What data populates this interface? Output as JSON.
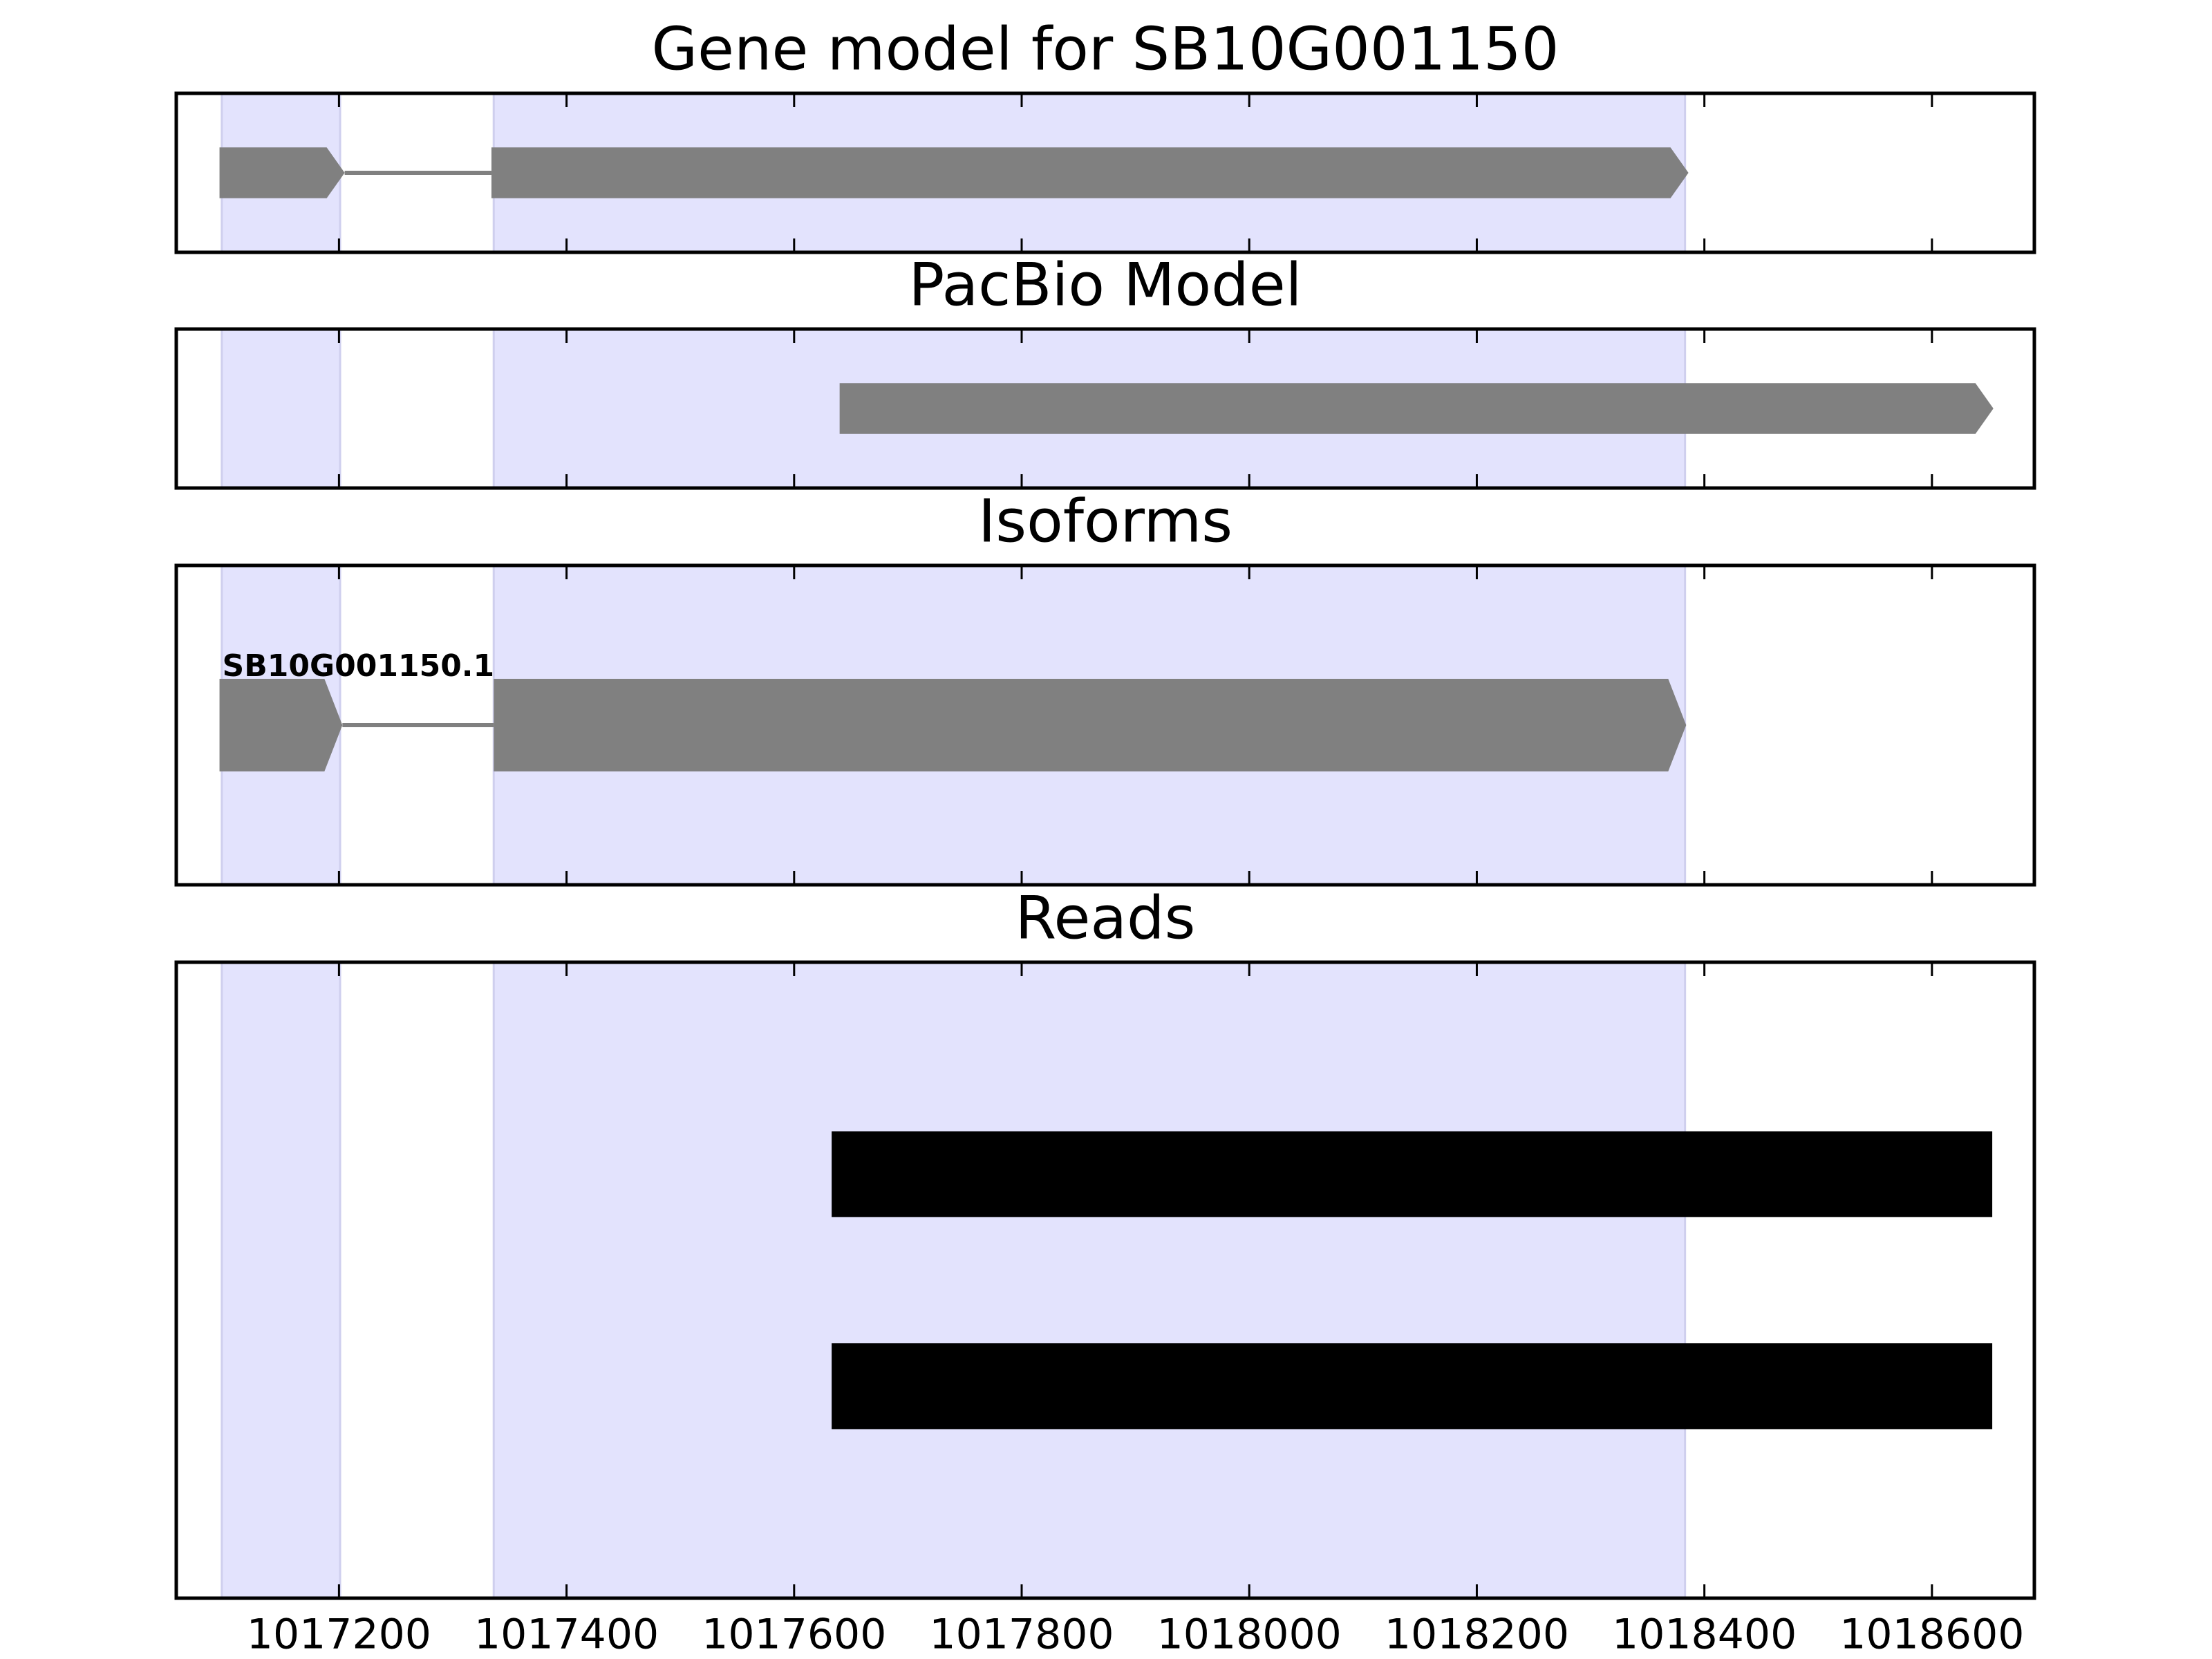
{
  "chart_data": {
    "type": "tracks",
    "xlim": [
      1017057,
      1018690
    ],
    "xticks": [
      1017200,
      1017400,
      1017600,
      1017800,
      1018000,
      1018200,
      1018400,
      1018600
    ],
    "region_color": "#e3e3fd",
    "regions": [
      {
        "start": 1017097,
        "end": 1017201
      },
      {
        "start": 1017336,
        "end": 1018383
      }
    ],
    "panels": [
      {
        "type": "gene",
        "title": "Gene model for SB10G001150",
        "color": "#808080",
        "strand": "+",
        "transcripts": [
          {
            "exons": [
              {
                "start": 1017095,
                "end": 1017205
              },
              {
                "start": 1017334,
                "end": 1018386
              }
            ]
          }
        ]
      },
      {
        "type": "gene",
        "title": "PacBio Model",
        "color": "#808080",
        "strand": "+",
        "transcripts": [
          {
            "exons": [
              {
                "start": 1017640,
                "end": 1018654
              }
            ]
          }
        ]
      },
      {
        "type": "gene",
        "title": "Isoforms",
        "color": "#808080",
        "strand": "+",
        "transcripts": [
          {
            "label": "SB10G001150.1",
            "exons": [
              {
                "start": 1017095,
                "end": 1017203
              },
              {
                "start": 1017336,
                "end": 1018384
              }
            ]
          }
        ]
      },
      {
        "type": "reads",
        "title": "Reads",
        "color": "#000000",
        "reads": [
          {
            "start": 1017633,
            "end": 1018653
          },
          {
            "start": 1017633,
            "end": 1018653
          }
        ]
      }
    ]
  }
}
